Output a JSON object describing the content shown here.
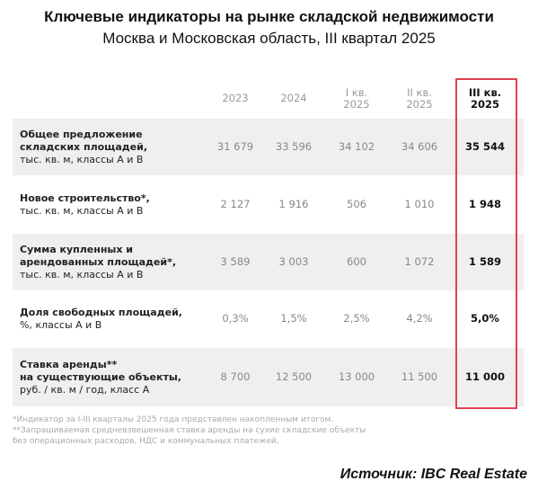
{
  "header": {
    "title": "Ключевые индикаторы на рынке складской недвижимости",
    "subtitle": "Москва и Московская область, III квартал 2025"
  },
  "table": {
    "columns": [
      [
        "2023"
      ],
      [
        "2024"
      ],
      [
        "I кв.",
        "2025"
      ],
      [
        "II кв.",
        "2025"
      ],
      [
        "III кв.",
        "2025"
      ]
    ],
    "rows": [
      {
        "label": [
          "Общее предложение",
          "складских площадей,"
        ],
        "unit": "тыс. кв. м, классы А и В",
        "values": [
          "31 679",
          "33 596",
          "34 102",
          "34 606",
          "35 544"
        ]
      },
      {
        "label": [
          "Новое строительство*,"
        ],
        "unit": "тыс. кв. м, классы А и В",
        "values": [
          "2 127",
          "1 916",
          "506",
          "1 010",
          "1 948"
        ]
      },
      {
        "label": [
          "Сумма купленных и",
          "арендованных площадей*,"
        ],
        "unit": "тыс. кв. м, классы А и В",
        "values": [
          "3 589",
          "3 003",
          "600",
          "1 072",
          "1 589"
        ]
      },
      {
        "label": [
          "Доля свободных площадей,"
        ],
        "unit": "%, классы А и В",
        "values": [
          "0,3%",
          "1,5%",
          "2,5%",
          "4,2%",
          "5,0%"
        ]
      },
      {
        "label": [
          "Ставка аренды**",
          "на существующие объекты,"
        ],
        "unit": "руб. / кв. м / год, класс А",
        "values": [
          "8 700",
          "12 500",
          "13 000",
          "11 500",
          "11 000"
        ]
      }
    ]
  },
  "footnotes": [
    "*Индикатор за I-III кварталы 2025 года представлен накопленным итогом.",
    "**Запрашиваемая средневзвешенная ставка аренды на сухие складские объекты",
    "без операционных расходов, НДС и коммунальных платежей."
  ],
  "source": "Источник: IBC Real Estate"
}
